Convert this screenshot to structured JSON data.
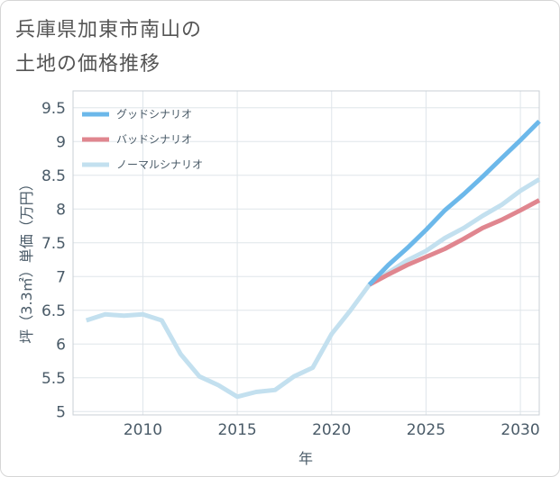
{
  "title_lines": [
    "兵庫県加東市南山の",
    "土地の価格推移"
  ],
  "chart_data": {
    "type": "line",
    "xlabel": "年",
    "ylabel": "坪（3.3㎡）単価（万円）",
    "xlim": [
      2006.3,
      2031
    ],
    "ylim": [
      4.95,
      9.75
    ],
    "x_ticks": [
      2010,
      2015,
      2020,
      2025,
      2030
    ],
    "y_ticks": [
      5,
      5.5,
      6,
      6.5,
      7,
      7.5,
      8,
      8.5,
      9,
      9.5
    ],
    "grid": true,
    "legend_position": "top-left",
    "series": [
      {
        "name": "グッドシナリオ",
        "color": "#6cb8ea",
        "x": [
          2022,
          2023,
          2024,
          2025,
          2026,
          2027,
          2028,
          2029,
          2030,
          2031
        ],
        "y": [
          6.88,
          7.17,
          7.42,
          7.69,
          7.98,
          8.22,
          8.48,
          8.75,
          9.02,
          9.3
        ]
      },
      {
        "name": "バッドシナリオ",
        "color": "#e0868f",
        "x": [
          2022,
          2023,
          2024,
          2025,
          2026,
          2027,
          2028,
          2029,
          2030,
          2031
        ],
        "y": [
          6.88,
          7.03,
          7.17,
          7.29,
          7.41,
          7.56,
          7.72,
          7.84,
          7.98,
          8.13
        ]
      },
      {
        "name": "ノーマルシナリオ",
        "color": "#c3e0ef",
        "x": [
          2007,
          2008,
          2009,
          2010,
          2011,
          2012,
          2013,
          2014,
          2015,
          2016,
          2017,
          2018,
          2019,
          2020,
          2021,
          2022,
          2023,
          2024,
          2025,
          2026,
          2027,
          2028,
          2029,
          2030,
          2031
        ],
        "y": [
          6.35,
          6.44,
          6.42,
          6.44,
          6.35,
          5.85,
          5.52,
          5.39,
          5.22,
          5.29,
          5.32,
          5.52,
          5.65,
          6.15,
          6.5,
          6.88,
          7.06,
          7.24,
          7.38,
          7.57,
          7.72,
          7.9,
          8.06,
          8.27,
          8.44
        ]
      }
    ]
  }
}
